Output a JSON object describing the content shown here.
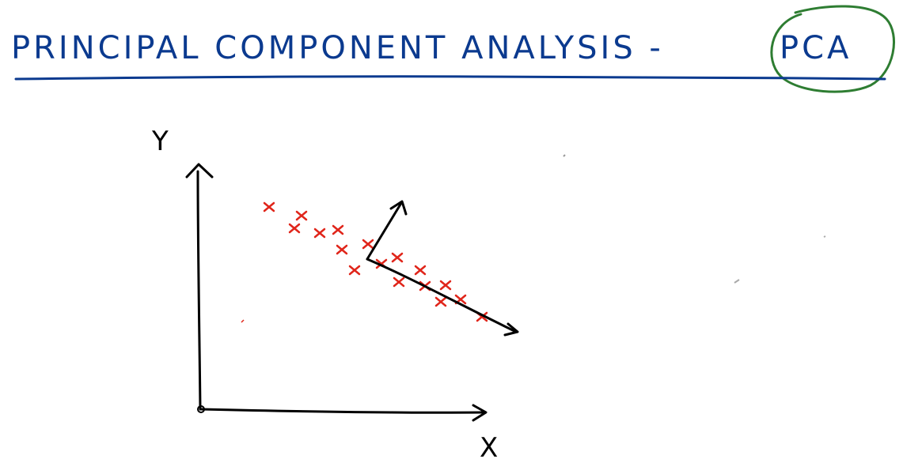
{
  "title": {
    "prefix": "PRINCIPAL COMPONENT ANALYSIS -",
    "acronym": "PCA"
  },
  "axes": {
    "x_label": "X",
    "y_label": "Y"
  },
  "colors": {
    "ink_blue": "#0b3a8f",
    "axis_black": "#000000",
    "point_red": "#e0251a",
    "circle_green": "#2e7d32"
  },
  "icons": {
    "points": "x-marker",
    "arrows": "arrowhead"
  }
}
